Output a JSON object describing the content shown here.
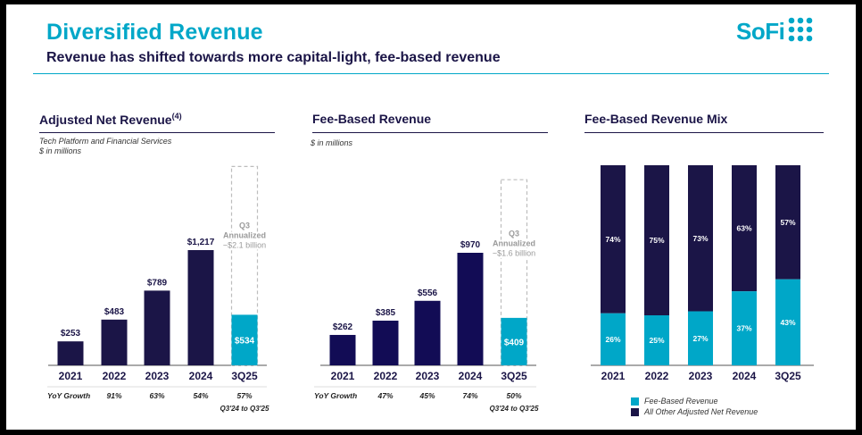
{
  "header": {
    "title": "Diversified Revenue",
    "subtitle": "Revenue has shifted towards more capital-light, fee-based revenue",
    "logo_text": "SoFi",
    "logo_icon": "sofi-dots-icon"
  },
  "colors": {
    "navy": "#1b1547",
    "teal": "#00a7c8",
    "dash": "#bdbdbd"
  },
  "chart_data": [
    {
      "type": "bar",
      "title": "Adjusted Net Revenue",
      "title_sup": "(4)",
      "notes": [
        "Tech Platform and Financial Services",
        "$ in millions"
      ],
      "categories": [
        "2021",
        "2022",
        "2023",
        "2024",
        "3Q25"
      ],
      "values": [
        253,
        483,
        789,
        1217,
        534
      ],
      "value_labels": [
        "$253",
        "$483",
        "$789",
        "$1,217",
        "$534"
      ],
      "annualized": {
        "value": 2100,
        "label_lines": [
          "Q3",
          "Annualized",
          "~$2.1 billion"
        ]
      },
      "growth": {
        "label": "YoY Growth",
        "values": [
          "",
          "91%",
          "63%",
          "54%",
          "57%"
        ],
        "footnote": "Q3'24 to Q3'25"
      }
    },
    {
      "type": "bar",
      "title": "Fee-Based Revenue",
      "notes": [
        "$ in millions"
      ],
      "categories": [
        "2021",
        "2022",
        "2023",
        "2024",
        "3Q25"
      ],
      "values": [
        262,
        385,
        556,
        970,
        409
      ],
      "value_labels": [
        "$262",
        "$385",
        "$556",
        "$970",
        "$409"
      ],
      "annualized": {
        "value": 1600,
        "label_lines": [
          "Q3",
          "Annualized",
          "~$1.6 billion"
        ]
      },
      "growth": {
        "label": "YoY Growth",
        "values": [
          "",
          "47%",
          "45%",
          "74%",
          "50%"
        ],
        "footnote": "Q3'24 to Q3'25"
      }
    },
    {
      "type": "bar",
      "stacked": true,
      "title": "Fee-Based Revenue Mix",
      "categories": [
        "2021",
        "2022",
        "2023",
        "2024",
        "3Q25"
      ],
      "series": [
        {
          "name": "Fee-Based Revenue",
          "values": [
            26,
            25,
            27,
            37,
            43
          ],
          "labels": [
            "26%",
            "25%",
            "27%",
            "37%",
            "43%"
          ]
        },
        {
          "name": "All Other Adjusted Net Revenue",
          "values": [
            74,
            75,
            73,
            63,
            57
          ],
          "labels": [
            "74%",
            "75%",
            "73%",
            "63%",
            "57%"
          ]
        }
      ]
    }
  ]
}
